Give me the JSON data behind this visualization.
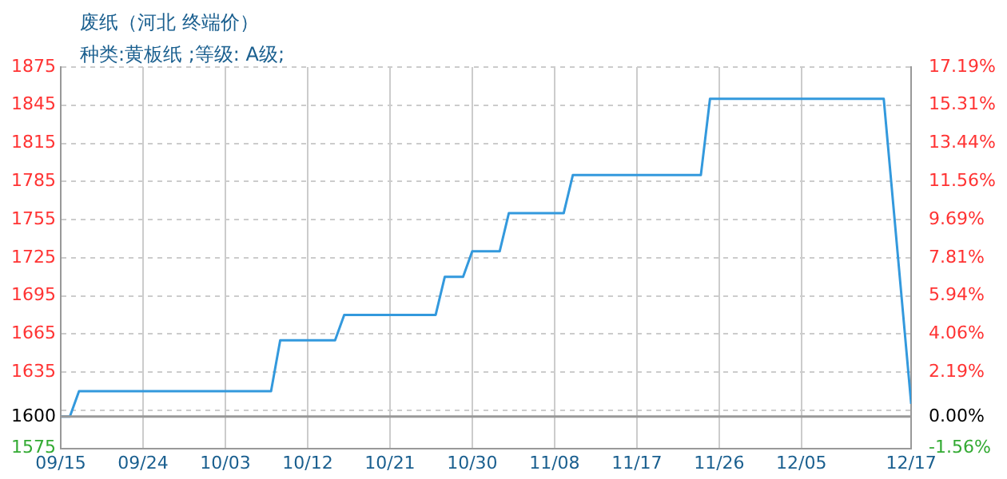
{
  "chart_data": {
    "type": "line",
    "title": "废纸（河北 终端价）",
    "subtitle": "种类:黄板纸 ;等级: A级;",
    "x": [
      "--09-15",
      "--09-16",
      "--09-17",
      "--10-08",
      "--10-09",
      "--10-15",
      "--10-16",
      "--10-26",
      "--10-27",
      "--10-29",
      "--10-30",
      "--11-02",
      "--11-03",
      "--11-09",
      "--11-10",
      "--11-24",
      "--11-25",
      "--12-14",
      "--12-17"
    ],
    "series": [
      {
        "color": "#3399dd",
        "values": [
          1600,
          1600,
          1620,
          1620,
          1660,
          1660,
          1680,
          1680,
          1710,
          1710,
          1730,
          1730,
          1760,
          1760,
          1790,
          1790,
          1850,
          1850,
          1610
        ]
      }
    ],
    "xlim": [
      "--09-15",
      "--12-17"
    ],
    "xticks": [
      {
        "value": "--09-15",
        "label": "09/15"
      },
      {
        "value": "--09-24",
        "label": "09/24"
      },
      {
        "value": "--10-03",
        "label": "10/03"
      },
      {
        "value": "--10-12",
        "label": "10/12"
      },
      {
        "value": "--10-21",
        "label": "10/21"
      },
      {
        "value": "--10-30",
        "label": "10/30"
      },
      {
        "value": "--11-08",
        "label": "11/08"
      },
      {
        "value": "--11-17",
        "label": "11/17"
      },
      {
        "value": "--11-26",
        "label": "11/26"
      },
      {
        "value": "--12-05",
        "label": "12/05"
      },
      {
        "value": "--12-17",
        "label": "12/17"
      }
    ],
    "ylim": [
      1575,
      1875
    ],
    "yticks": [
      1575,
      1600,
      {
        "value": 1605,
        "label": null
      },
      1635,
      1665,
      1695,
      1725,
      1755,
      1785,
      1815,
      1845,
      1875
    ],
    "y2lim": [
      -1.5625,
      17.1875
    ],
    "y2ticks": [
      {
        "value": -1.5625,
        "label": "-1.56%"
      },
      {
        "value": 0,
        "label": "0.00%"
      },
      {
        "value": 2.1875,
        "label": "2.19%"
      },
      {
        "value": 4.0625,
        "label": "4.06%"
      },
      {
        "value": 5.9375,
        "label": "5.94%"
      },
      {
        "value": 7.8125,
        "label": "7.81%"
      },
      {
        "value": 9.6875,
        "label": "9.69%"
      },
      {
        "value": 11.5625,
        "label": "11.56%"
      },
      {
        "value": 13.4375,
        "label": "13.44%"
      },
      {
        "value": 15.3125,
        "label": "15.31%"
      },
      {
        "value": 17.1875,
        "label": "17.19%"
      }
    ],
    "ref_lines": [
      {
        "axis": "y",
        "value": 1600,
        "color": "#999999"
      }
    ],
    "grid": true,
    "legend": false,
    "marker": "none",
    "line_style": "solid"
  }
}
